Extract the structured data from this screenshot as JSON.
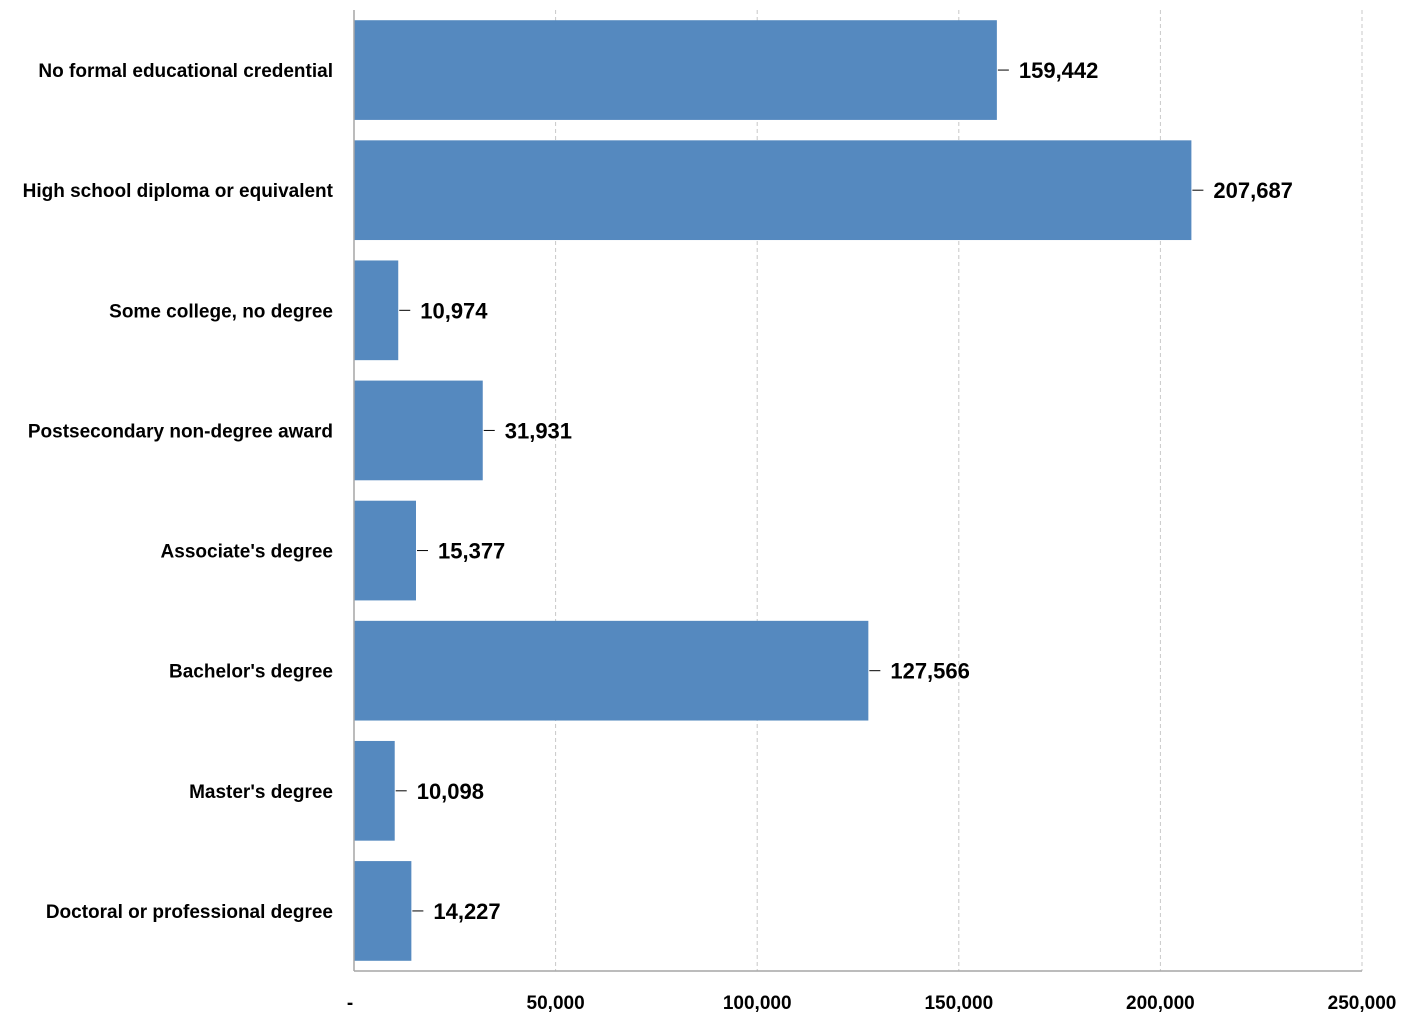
{
  "colors": {
    "bar": "#5589BF",
    "grid": "#C8C8C8",
    "axis": "#A6A6A6",
    "leader": "#000000"
  },
  "chart_data": {
    "type": "bar",
    "orientation": "horizontal",
    "title": "",
    "xlabel": "",
    "ylabel": "",
    "categories": [
      "No formal educational credential",
      "High school diploma or equivalent",
      "Some college, no degree",
      "Postsecondary non-degree award",
      "Associate's degree",
      "Bachelor's degree",
      "Master's degree",
      "Doctoral or professional degree"
    ],
    "values": [
      159442,
      207687,
      10974,
      31931,
      15377,
      127566,
      10098,
      14227
    ],
    "value_labels": [
      "159,442",
      "207,687",
      "10,974",
      "31,931",
      "15,377",
      "127,566",
      "10,098",
      "14,227"
    ],
    "xlim": [
      0,
      250000
    ],
    "x_ticks": [
      0,
      50000,
      100000,
      150000,
      200000,
      250000
    ],
    "x_tick_labels": [
      "-",
      "50,000",
      "100,000",
      "150,000",
      "200,000",
      "250,000"
    ],
    "grid": "vertical dashed",
    "legend": "none"
  }
}
